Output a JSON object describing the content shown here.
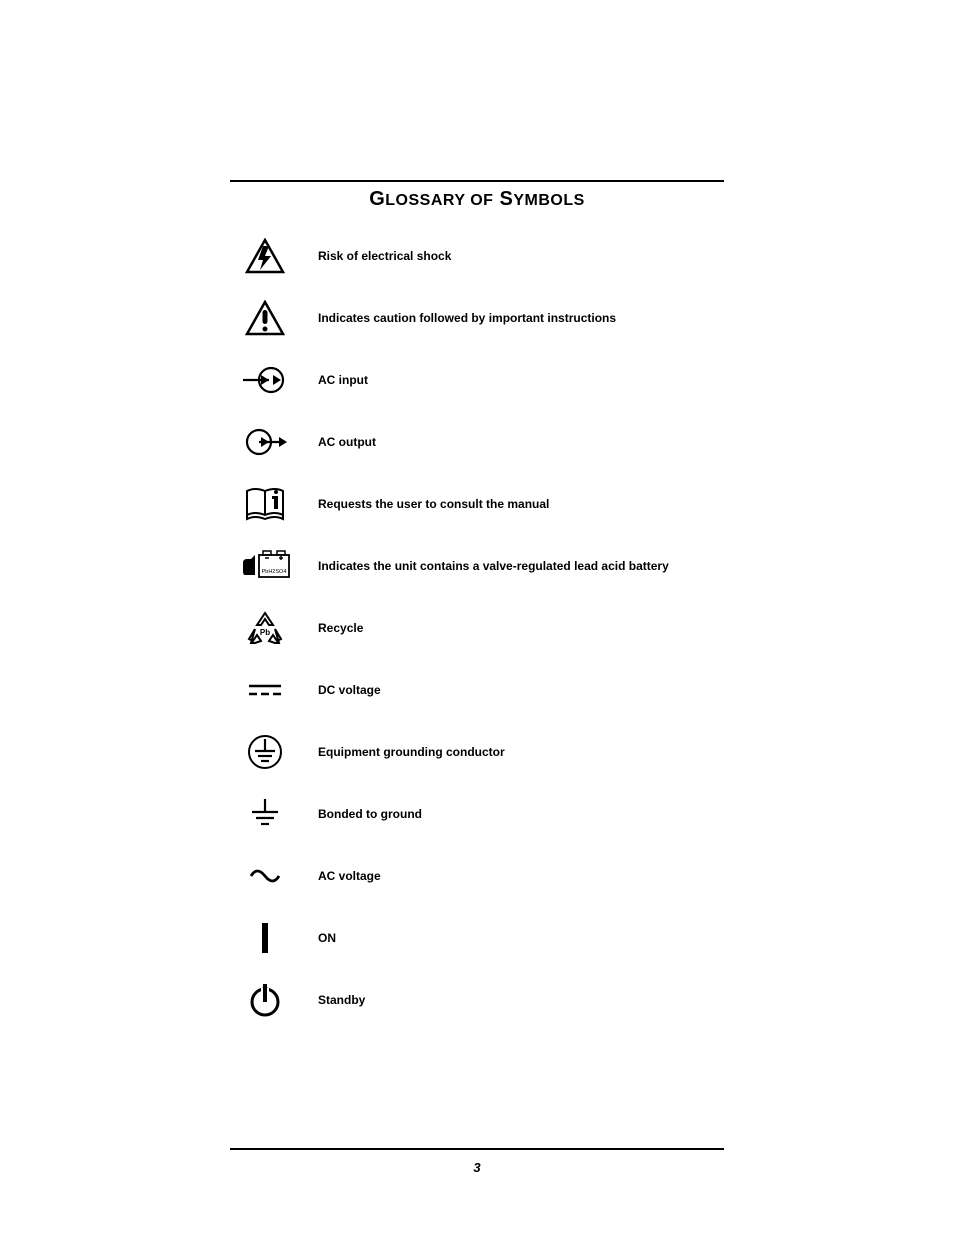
{
  "title_html": "G<span class='small'>LOSSARY OF</span> S<span class='small'>YMBOLS</span>",
  "page_number": "3",
  "colors": {
    "text": "#000000",
    "bg": "#ffffff",
    "rule": "#000000"
  },
  "glossary": [
    {
      "icon": "shock",
      "label": "Risk of electrical shock"
    },
    {
      "icon": "caution",
      "label": "Indicates caution followed by important instructions"
    },
    {
      "icon": "ac-input",
      "label": "AC input"
    },
    {
      "icon": "ac-output",
      "label": "AC output"
    },
    {
      "icon": "manual",
      "label": "Requests the user to consult the manual"
    },
    {
      "icon": "battery",
      "label": "Indicates the unit contains a valve-regulated lead acid battery"
    },
    {
      "icon": "recycle",
      "label": "Recycle"
    },
    {
      "icon": "dc",
      "label": "DC voltage"
    },
    {
      "icon": "ground-eq",
      "label": "Equipment grounding conductor"
    },
    {
      "icon": "ground-bond",
      "label": "Bonded to ground"
    },
    {
      "icon": "ac",
      "label": "AC voltage"
    },
    {
      "icon": "on",
      "label": "ON"
    },
    {
      "icon": "standby",
      "label": "Standby"
    }
  ],
  "typography": {
    "title_fontsize": 20,
    "label_fontsize": 12,
    "label_weight": "bold",
    "page_num_fontsize": 13
  },
  "battery_text": "PbH2SO4"
}
